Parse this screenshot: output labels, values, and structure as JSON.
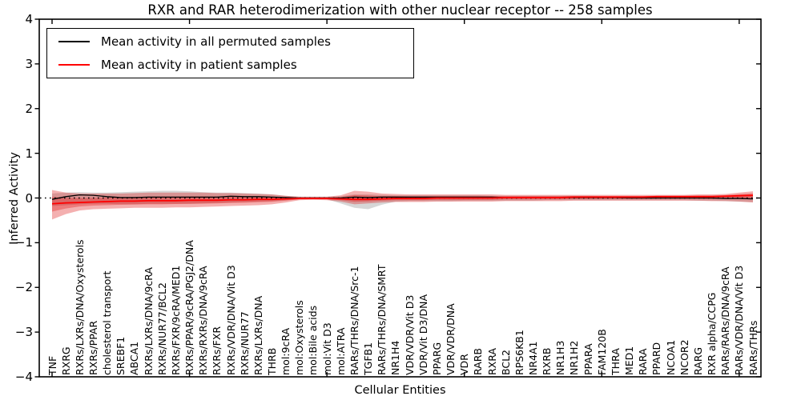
{
  "title": "RXR and RAR heterodimerization with other nuclear receptor -- 258 samples",
  "axes": {
    "ylabel": "Inferred Activity",
    "xlabel": "Cellular Entities",
    "ytick_labels": [
      "4",
      "3",
      "2",
      "1",
      "0",
      "−1",
      "−2",
      "−3",
      "−4"
    ],
    "ytick_values": [
      4,
      3,
      2,
      1,
      0,
      -1,
      -2,
      -3,
      -4
    ]
  },
  "legend": {
    "items": [
      {
        "label": "Mean activity in all permuted samples",
        "color": "#000000"
      },
      {
        "label": "Mean activity in patient samples",
        "color": "#ff0000"
      }
    ]
  },
  "chart_data": {
    "type": "line",
    "title": "RXR and RAR heterodimerization with other nuclear receptor -- 258 samples",
    "xlabel": "Cellular Entities",
    "ylabel": "Inferred Activity",
    "ylim": [
      -4,
      4
    ],
    "grid": false,
    "legend_position": "upper left",
    "zero_reference_line": 0,
    "top_ticks_every_n_categories": 10,
    "categories": [
      "TNF",
      "RXRG",
      "RXRs/LXRs/DNA/Oxysterols",
      "RXRs/PPAR",
      "cholesterol transport",
      "SREBF1",
      "ABCA1",
      "RXRs/LXRs/DNA/9cRA",
      "RXRs/NUR77/BCL2",
      "RXRs/FXR/9cRA/MED1",
      "RXRs/PPAR/9cRA/PGJ2/DNA",
      "RXRs/RXRs/DNA/9cRA",
      "RXRs/FXR",
      "RXRs/VDR/DNA/Vit D3",
      "RXRs/NUR77",
      "RXRs/LXRs/DNA",
      "THRB",
      "mol:9cRA",
      "mol:Oxysterols",
      "mol:Bile acids",
      "mol:Vit D3",
      "mol:ATRA",
      "RARs/THRs/DNA/Src-1",
      "TGFB1",
      "RARs/THRs/DNA/SMRT",
      "NR1H4",
      "VDR/VDR/Vit D3",
      "VDR/Vit D3/DNA",
      "PPARG",
      "VDR/VDR/DNA",
      "VDR",
      "RARB",
      "RXRA",
      "BCL2",
      "RPS6KB1",
      "NR4A1",
      "RXRB",
      "NR1H3",
      "NR1H2",
      "PPARA",
      "FAM120B",
      "THRA",
      "MED1",
      "RARA",
      "PPARD",
      "NCOA1",
      "NCOR2",
      "RARG",
      "RXR alpha/CCPG",
      "RARs/RARs/DNA/9cRA",
      "RARs/VDR/DNA/Vit D3",
      "RARs/THRs"
    ],
    "series": [
      {
        "name": "Mean activity in all permuted samples",
        "color": "#000000",
        "width": 1.3,
        "values": [
          -0.03,
          0.03,
          0.07,
          0.06,
          0.03,
          0.01,
          0.01,
          0.02,
          0.02,
          0.02,
          0.02,
          0.02,
          0.02,
          0.04,
          0.03,
          0.03,
          0.02,
          0.01,
          0.0,
          0.0,
          0.0,
          0.0,
          0.02,
          0.01,
          0.02,
          0.02,
          0.02,
          0.02,
          0.02,
          0.02,
          0.02,
          0.02,
          0.02,
          0.01,
          0.01,
          0.01,
          0.01,
          0.01,
          0.01,
          0.01,
          0.01,
          0.01,
          0.0,
          0.0,
          0.0,
          0.0,
          0.0,
          0.0,
          0.0,
          -0.01,
          -0.01,
          -0.02
        ]
      },
      {
        "name": "Mean activity in patient samples",
        "color": "#ff0000",
        "width": 1.8,
        "values": [
          -0.13,
          -0.11,
          -0.1,
          -0.09,
          -0.08,
          -0.07,
          -0.07,
          -0.06,
          -0.06,
          -0.06,
          -0.05,
          -0.05,
          -0.05,
          -0.04,
          -0.04,
          -0.03,
          -0.03,
          -0.02,
          -0.01,
          -0.01,
          -0.01,
          -0.02,
          -0.03,
          -0.03,
          -0.02,
          -0.01,
          -0.01,
          -0.01,
          0.0,
          0.0,
          0.0,
          0.0,
          0.0,
          0.01,
          0.01,
          0.01,
          0.01,
          0.01,
          0.02,
          0.02,
          0.02,
          0.02,
          0.02,
          0.02,
          0.03,
          0.03,
          0.03,
          0.03,
          0.03,
          0.04,
          0.05,
          0.06
        ]
      }
    ],
    "bands": [
      {
        "name": "permuted-samples-spread",
        "fill": "rgba(120,120,120,0.30)",
        "upper": [
          0.1,
          0.12,
          0.13,
          0.12,
          0.12,
          0.13,
          0.14,
          0.15,
          0.16,
          0.16,
          0.15,
          0.13,
          0.12,
          0.12,
          0.11,
          0.1,
          0.08,
          0.05,
          0.03,
          0.03,
          0.03,
          0.04,
          0.08,
          0.08,
          0.07,
          0.06,
          0.06,
          0.06,
          0.06,
          0.06,
          0.06,
          0.06,
          0.05,
          0.05,
          0.05,
          0.05,
          0.05,
          0.05,
          0.05,
          0.05,
          0.04,
          0.04,
          0.04,
          0.04,
          0.04,
          0.04,
          0.04,
          0.04,
          0.04,
          0.05,
          0.05,
          0.06
        ],
        "lower": [
          -0.18,
          -0.16,
          -0.14,
          -0.13,
          -0.13,
          -0.14,
          -0.14,
          -0.13,
          -0.13,
          -0.13,
          -0.13,
          -0.12,
          -0.11,
          -0.1,
          -0.09,
          -0.08,
          -0.07,
          -0.05,
          -0.03,
          -0.03,
          -0.03,
          -0.12,
          -0.22,
          -0.25,
          -0.15,
          -0.08,
          -0.07,
          -0.07,
          -0.07,
          -0.07,
          -0.06,
          -0.06,
          -0.06,
          -0.06,
          -0.06,
          -0.06,
          -0.05,
          -0.05,
          -0.05,
          -0.05,
          -0.05,
          -0.05,
          -0.05,
          -0.05,
          -0.05,
          -0.05,
          -0.05,
          -0.06,
          -0.06,
          -0.07,
          -0.08,
          -0.09
        ]
      },
      {
        "name": "patient-samples-spread-outer",
        "fill": "rgba(222,15,15,0.33)",
        "upper": [
          0.18,
          0.12,
          0.1,
          0.1,
          0.1,
          0.1,
          0.11,
          0.12,
          0.12,
          0.12,
          0.12,
          0.12,
          0.11,
          0.11,
          0.1,
          0.09,
          0.08,
          0.05,
          0.03,
          0.03,
          0.03,
          0.06,
          0.16,
          0.14,
          0.1,
          0.09,
          0.08,
          0.08,
          0.08,
          0.08,
          0.08,
          0.08,
          0.08,
          0.07,
          0.07,
          0.07,
          0.07,
          0.07,
          0.07,
          0.07,
          0.07,
          0.07,
          0.07,
          0.07,
          0.07,
          0.07,
          0.07,
          0.08,
          0.08,
          0.09,
          0.12,
          0.15
        ],
        "lower": [
          -0.48,
          -0.36,
          -0.28,
          -0.25,
          -0.24,
          -0.23,
          -0.22,
          -0.22,
          -0.22,
          -0.21,
          -0.21,
          -0.2,
          -0.19,
          -0.18,
          -0.17,
          -0.16,
          -0.14,
          -0.1,
          -0.05,
          -0.04,
          -0.05,
          -0.08,
          -0.14,
          -0.12,
          -0.1,
          -0.09,
          -0.09,
          -0.09,
          -0.08,
          -0.08,
          -0.08,
          -0.08,
          -0.08,
          -0.07,
          -0.07,
          -0.07,
          -0.07,
          -0.07,
          -0.06,
          -0.06,
          -0.06,
          -0.06,
          -0.06,
          -0.06,
          -0.06,
          -0.06,
          -0.06,
          -0.06,
          -0.07,
          -0.07,
          -0.08,
          -0.1
        ]
      },
      {
        "name": "patient-samples-spread-inner",
        "fill": "rgba(222,0,0,0.30)",
        "derived_from_band": "patient-samples-spread-outer",
        "scale_toward_patient_mean": 0.5
      }
    ]
  }
}
